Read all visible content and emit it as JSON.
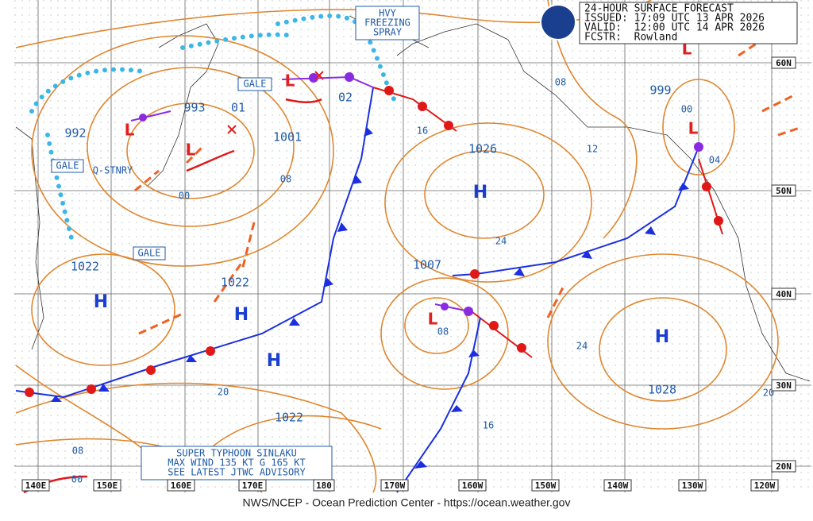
{
  "header": {
    "title": "24-HOUR SURFACE FORECAST",
    "issued": "ISSUED: 17:09 UTC 13 APR 2026",
    "valid": "VALID:  12:00 UTC 14 APR 2026",
    "forecaster": "FCSTR:  Rowland"
  },
  "warnings": {
    "freezing_spray": [
      "HVY",
      "FREEZING",
      "SPRAY"
    ],
    "gale": [
      "GALE",
      "GALE",
      "GALE"
    ]
  },
  "features": {
    "stationary": "Q-STNRY",
    "typhoon": [
      "SUPER TYPHOON SINLAKU",
      "MAX WIND 135 KT G 165 KT",
      "SEE LATEST JTWC ADVISORY"
    ]
  },
  "pressure_centers": [
    "992",
    "993",
    "01",
    "1001",
    "02",
    "1026",
    "999",
    "00",
    "04",
    "1022",
    "1022",
    "1007",
    "08",
    "1028",
    "1022"
  ],
  "isobar_labels": [
    "08",
    "12",
    "16",
    "24",
    "00",
    "08",
    "24",
    "20",
    "16",
    "20",
    "08",
    "00"
  ],
  "highs": [
    "H",
    "H",
    "H",
    "H",
    "H"
  ],
  "lows": [
    "L",
    "L",
    "L",
    "L",
    "L",
    "L"
  ],
  "longitudes": [
    "140E",
    "150E",
    "160E",
    "170E",
    "180",
    "170W",
    "160W",
    "150W",
    "140W",
    "130W",
    "120W"
  ],
  "latitudes": [
    "60N",
    "50N",
    "40N",
    "30N",
    "20N"
  ],
  "footer": "NWS/NCEP - Ocean Prediction Center - https://ocean.weather.gov"
}
